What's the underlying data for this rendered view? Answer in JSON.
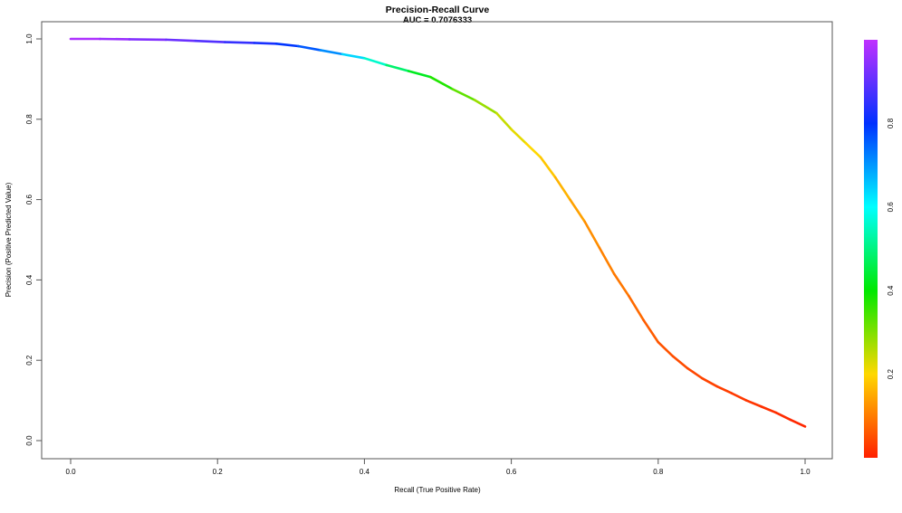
{
  "chart_data": {
    "type": "line",
    "title": "Precision-Recall Curve",
    "subtitle": "AUC = 0.7076333",
    "xlabel": "Recall (True Positive Rate)",
    "ylabel": "Precision (Positive Predicted Value)",
    "xlim": [
      0,
      1
    ],
    "ylim": [
      0,
      1
    ],
    "x_ticks": [
      "0.0",
      "0.2",
      "0.4",
      "0.6",
      "0.8",
      "1.0"
    ],
    "y_ticks": [
      "0.0",
      "0.2",
      "0.4",
      "0.6",
      "0.8",
      "1.0"
    ],
    "grid": false,
    "legend": "none",
    "series": [
      {
        "color_by": "threshold",
        "points": [
          {
            "x": 0.0,
            "y": 1.0,
            "t": 0.99
          },
          {
            "x": 0.04,
            "y": 1.0,
            "t": 0.97
          },
          {
            "x": 0.08,
            "y": 0.999,
            "t": 0.95
          },
          {
            "x": 0.13,
            "y": 0.998,
            "t": 0.92
          },
          {
            "x": 0.17,
            "y": 0.995,
            "t": 0.9
          },
          {
            "x": 0.21,
            "y": 0.992,
            "t": 0.87
          },
          {
            "x": 0.25,
            "y": 0.99,
            "t": 0.84
          },
          {
            "x": 0.28,
            "y": 0.988,
            "t": 0.81
          },
          {
            "x": 0.31,
            "y": 0.982,
            "t": 0.78
          },
          {
            "x": 0.34,
            "y": 0.972,
            "t": 0.74
          },
          {
            "x": 0.37,
            "y": 0.962,
            "t": 0.68
          },
          {
            "x": 0.4,
            "y": 0.952,
            "t": 0.6
          },
          {
            "x": 0.43,
            "y": 0.935,
            "t": 0.52
          },
          {
            "x": 0.46,
            "y": 0.92,
            "t": 0.45
          },
          {
            "x": 0.49,
            "y": 0.905,
            "t": 0.4
          },
          {
            "x": 0.52,
            "y": 0.875,
            "t": 0.35
          },
          {
            "x": 0.55,
            "y": 0.848,
            "t": 0.3
          },
          {
            "x": 0.58,
            "y": 0.815,
            "t": 0.26
          },
          {
            "x": 0.6,
            "y": 0.775,
            "t": 0.23
          },
          {
            "x": 0.62,
            "y": 0.74,
            "t": 0.21
          },
          {
            "x": 0.64,
            "y": 0.705,
            "t": 0.19
          },
          {
            "x": 0.66,
            "y": 0.655,
            "t": 0.17
          },
          {
            "x": 0.68,
            "y": 0.6,
            "t": 0.15
          },
          {
            "x": 0.7,
            "y": 0.545,
            "t": 0.13
          },
          {
            "x": 0.72,
            "y": 0.48,
            "t": 0.11
          },
          {
            "x": 0.74,
            "y": 0.415,
            "t": 0.1
          },
          {
            "x": 0.76,
            "y": 0.36,
            "t": 0.09
          },
          {
            "x": 0.78,
            "y": 0.3,
            "t": 0.07
          },
          {
            "x": 0.8,
            "y": 0.245,
            "t": 0.06
          },
          {
            "x": 0.82,
            "y": 0.21,
            "t": 0.05
          },
          {
            "x": 0.84,
            "y": 0.18,
            "t": 0.045
          },
          {
            "x": 0.86,
            "y": 0.155,
            "t": 0.04
          },
          {
            "x": 0.88,
            "y": 0.135,
            "t": 0.035
          },
          {
            "x": 0.9,
            "y": 0.118,
            "t": 0.03
          },
          {
            "x": 0.92,
            "y": 0.1,
            "t": 0.025
          },
          {
            "x": 0.94,
            "y": 0.085,
            "t": 0.02
          },
          {
            "x": 0.96,
            "y": 0.07,
            "t": 0.015
          },
          {
            "x": 0.98,
            "y": 0.052,
            "t": 0.01
          },
          {
            "x": 1.0,
            "y": 0.035,
            "t": 0.005
          }
        ]
      }
    ],
    "colorbar": {
      "range": [
        0,
        1
      ],
      "ticks": [
        "0.2",
        "0.4",
        "0.6",
        "0.8"
      ],
      "palette": "rainbow",
      "colors": [
        "#ff2000",
        "#ffd800",
        "#00e800",
        "#00ffff",
        "#0030ff",
        "#c030ff"
      ]
    },
    "colors": {
      "axis": "#555555",
      "frame": "#555555"
    }
  }
}
